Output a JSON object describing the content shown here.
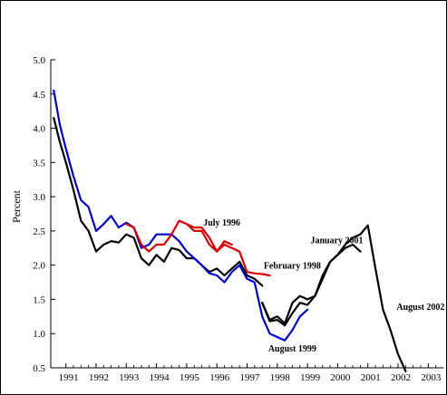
{
  "chart_data": {
    "type": "line",
    "title": "",
    "xlabel": "",
    "ylabel": "Percent",
    "xlim": [
      1990.5,
      2003.5
    ],
    "ylim": [
      0.5,
      5.0
    ],
    "y_ticks": [
      "0.5",
      "1.0",
      "1.5",
      "2.0",
      "2.5",
      "3.0",
      "3.5",
      "4.0",
      "4.5",
      "5.0"
    ],
    "x_tick_labels": [
      "1991",
      "1992",
      "1993",
      "1994",
      "1995",
      "1996",
      "1997",
      "1998",
      "1999",
      "2000",
      "2001",
      "2002",
      "2003"
    ],
    "grid": false,
    "series": [
      {
        "color": "#000000",
        "x": [
          1990.6,
          1990.8,
          1991.0,
          1991.25,
          1991.5,
          1991.75,
          1992.0,
          1992.25,
          1992.5,
          1992.75,
          1993.0,
          1993.25,
          1993.5,
          1993.75,
          1994.0,
          1994.25,
          1994.5,
          1994.75,
          1995.0,
          1995.25,
          1995.5,
          1995.75,
          1996.0,
          1996.25,
          1996.5,
          1996.75,
          1997.0,
          1997.25,
          1997.5
        ],
        "y": [
          4.15,
          3.8,
          3.5,
          3.1,
          2.65,
          2.5,
          2.2,
          2.3,
          2.35,
          2.33,
          2.45,
          2.4,
          2.1,
          2.0,
          2.15,
          2.05,
          2.25,
          2.22,
          2.1,
          2.1,
          2.0,
          1.9,
          1.95,
          1.85,
          1.95,
          2.05,
          1.85,
          1.8,
          1.7
        ]
      },
      {
        "color": "#000000",
        "x": [
          1997.5,
          1997.75,
          1998.0,
          1998.25,
          1998.5,
          1998.75,
          1999.0,
          1999.25,
          1999.5,
          1999.75,
          2000.0,
          2000.25,
          2000.5,
          2000.75
        ],
        "y": [
          1.45,
          1.2,
          1.25,
          1.15,
          1.45,
          1.55,
          1.5,
          1.55,
          1.8,
          2.05,
          2.15,
          2.25,
          2.3,
          2.2
        ]
      },
      {
        "color": "#000000",
        "x": [
          1997.5,
          1997.75,
          1998.0,
          1998.25,
          1998.5,
          1998.75,
          1999.0,
          1999.25,
          1999.5,
          1999.75,
          2000.0,
          2000.25,
          2000.5,
          2000.75,
          2001.0,
          2001.25,
          2001.5,
          2001.75,
          2002.0,
          2002.25
        ],
        "y": [
          1.45,
          1.18,
          1.2,
          1.12,
          1.3,
          1.45,
          1.42,
          1.55,
          1.85,
          2.05,
          2.15,
          2.3,
          2.4,
          2.45,
          2.58,
          1.95,
          1.35,
          1.05,
          0.7,
          0.45
        ]
      },
      {
        "color": "#0000dd",
        "name": "August 1999",
        "x": [
          1990.6,
          1990.8,
          1991.0,
          1991.25,
          1991.5,
          1991.75,
          1992.0,
          1992.25,
          1992.5,
          1992.75,
          1993.0,
          1993.25,
          1993.5,
          1993.75,
          1994.0,
          1994.25,
          1994.5,
          1994.75,
          1995.0,
          1995.25,
          1995.5,
          1995.75,
          1996.0,
          1996.25,
          1996.5,
          1996.75,
          1997.0,
          1997.25,
          1997.5,
          1997.75,
          1998.0,
          1998.25,
          1998.5,
          1998.75,
          1999.0
        ],
        "y": [
          4.55,
          4.05,
          3.7,
          3.3,
          2.95,
          2.85,
          2.5,
          2.6,
          2.72,
          2.55,
          2.62,
          2.55,
          2.25,
          2.3,
          2.45,
          2.45,
          2.45,
          2.35,
          2.2,
          2.1,
          2.0,
          1.88,
          1.85,
          1.75,
          1.9,
          2.0,
          1.8,
          1.75,
          1.25,
          1.0,
          0.95,
          0.9,
          1.05,
          1.25,
          1.35
        ]
      },
      {
        "color": "#dd0000",
        "name": "July 1996",
        "x": [
          1993.0,
          1993.25,
          1993.5,
          1993.75,
          1994.0,
          1994.25,
          1994.5,
          1994.75,
          1995.0,
          1995.25,
          1995.5,
          1995.75,
          1996.0,
          1996.25,
          1996.5
        ],
        "y": [
          2.6,
          2.55,
          2.3,
          2.2,
          2.3,
          2.3,
          2.45,
          2.65,
          2.6,
          2.5,
          2.5,
          2.3,
          2.2,
          2.35,
          2.3
        ]
      },
      {
        "color": "#dd0000",
        "name": "February 1998",
        "x": [
          1995.0,
          1995.25,
          1995.5,
          1995.75,
          1996.0,
          1996.25,
          1996.5,
          1996.75,
          1997.0,
          1997.25,
          1997.5,
          1997.75
        ],
        "y": [
          2.6,
          2.55,
          2.55,
          2.4,
          2.2,
          2.3,
          2.25,
          2.2,
          1.9,
          1.88,
          1.87,
          1.85
        ]
      }
    ],
    "annotations": [
      {
        "text": "July 1996",
        "x": 1995.55,
        "y": 2.58
      },
      {
        "text": "February 1998",
        "x": 1997.55,
        "y": 1.95
      },
      {
        "text": "January 2001",
        "x": 1999.1,
        "y": 2.32
      },
      {
        "text": "August 2002",
        "x": 2001.95,
        "y": 1.35
      },
      {
        "text": "August 1999",
        "x": 1997.7,
        "y": 0.74
      }
    ]
  }
}
